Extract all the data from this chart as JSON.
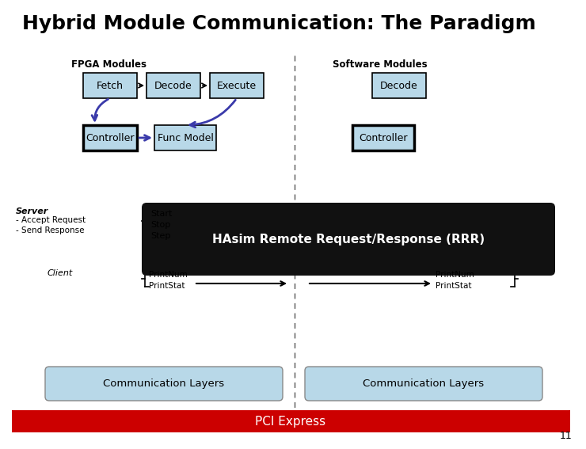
{
  "title": "Hybrid Module Communication: The Paradigm",
  "title_fontsize": 18,
  "title_fontweight": "bold",
  "bg_color": "#ffffff",
  "fpga_label": "FPGA Modules",
  "sw_label": "Software Modules",
  "box_fill": "#b8d8e8",
  "box_edge": "#000000",
  "controller_fill": "#b8d8e8",
  "controller_edge": "#000000",
  "controller_lw": 2.5,
  "comm_fill": "#b8d8e8",
  "comm_edge": "#aaaaaa",
  "pci_fill": "#cc0000",
  "pci_text": "#ffffff",
  "rrr_fill": "#111111",
  "rrr_text": "#ffffff",
  "rrr_label": "HAsim Remote Request/Response (RRR)",
  "page_num": "11",
  "server_label": "Server",
  "server_items": "- Accept Request\n- Send Response",
  "server_methods": "Start\nStop\nStep",
  "client_label": "Client",
  "client_methods": "PrintNum\nPrintStat",
  "pci_label": "PCI Express",
  "comm_label": "Communication Layers",
  "blue_arrow": "#3a3aaa",
  "black_arrow": "#000000"
}
